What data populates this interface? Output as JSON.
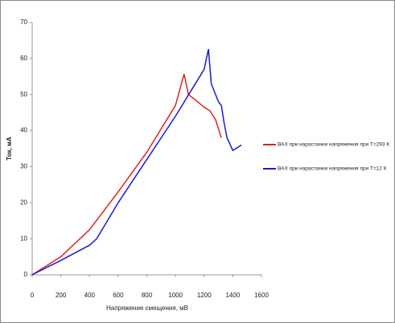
{
  "chart_data": {
    "type": "line",
    "xlabel": "Напряжение смещения, мВ",
    "ylabel": "Ток, мА",
    "xlim": [
      0,
      1600
    ],
    "xticks": [
      0,
      200,
      400,
      600,
      800,
      1000,
      1200,
      1400,
      1600
    ],
    "ylim": [
      0,
      70
    ],
    "yticks": [
      0,
      10,
      20,
      30,
      40,
      50,
      60,
      70
    ],
    "grid": false,
    "legend": "right",
    "series": [
      {
        "name": "ВАХ при нарастании напряжения при Т=293 К",
        "color": "#e02020",
        "x": [
          0,
          200,
          400,
          600,
          800,
          1000,
          1060,
          1090,
          1140,
          1200,
          1240,
          1280,
          1300,
          1320
        ],
        "values": [
          0,
          5,
          12.5,
          23,
          34,
          47,
          55.7,
          50,
          48.5,
          46.5,
          45.5,
          43,
          40.5,
          38
        ]
      },
      {
        "name": "ВАХ при нарастании напряжения при Т=12 К",
        "color": "#1a1ad0",
        "x": [
          0,
          200,
          400,
          450,
          600,
          800,
          1000,
          1200,
          1230,
          1250,
          1270,
          1300,
          1320,
          1340,
          1360,
          1400,
          1420,
          1460
        ],
        "values": [
          0,
          4,
          8.2,
          10,
          20,
          32,
          44,
          57,
          62.6,
          53,
          51,
          48,
          47,
          42,
          38,
          34.5,
          35,
          36
        ]
      }
    ]
  }
}
